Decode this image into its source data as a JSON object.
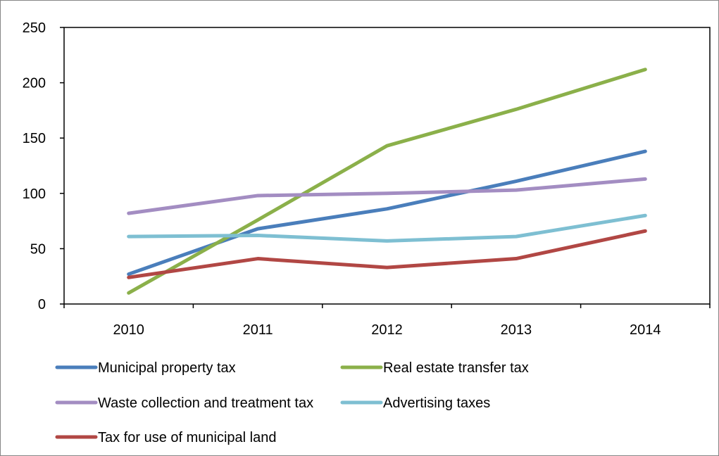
{
  "chart_data": {
    "type": "line",
    "title": "",
    "xlabel": "",
    "ylabel": "",
    "categories": [
      "2010",
      "2011",
      "2012",
      "2013",
      "2014"
    ],
    "ylim": [
      0,
      250
    ],
    "yticks": [
      0,
      50,
      100,
      150,
      200,
      250
    ],
    "grid": false,
    "legend_position": "bottom",
    "series": [
      {
        "name": "Municipal property tax",
        "color": "#4A7EBB",
        "values": [
          27,
          68,
          86,
          111,
          138
        ]
      },
      {
        "name": "Real estate transfer tax",
        "color": "#8BB04A",
        "values": [
          10,
          76,
          143,
          176,
          212
        ]
      },
      {
        "name": "Waste collection and treatment tax",
        "color": "#A38DC2",
        "values": [
          82,
          98,
          100,
          103,
          113
        ]
      },
      {
        "name": "Advertising taxes",
        "color": "#7EBFD2",
        "values": [
          61,
          62,
          57,
          61,
          80
        ]
      },
      {
        "name": "Tax for use of municipal land",
        "color": "#B14744",
        "values": [
          24,
          41,
          33,
          41,
          66
        ]
      }
    ]
  }
}
